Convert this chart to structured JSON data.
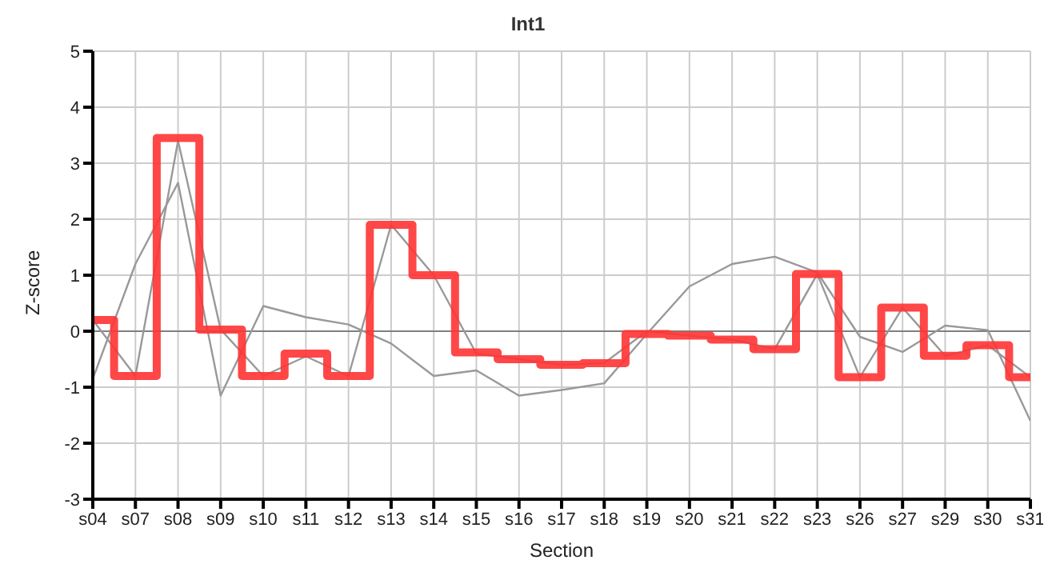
{
  "chart_data": {
    "type": "line",
    "title": "Int1",
    "xlabel": "Section",
    "ylabel": "Z-score",
    "categories": [
      "s04",
      "s07",
      "s08",
      "s09",
      "s10",
      "s11",
      "s12",
      "s13",
      "s14",
      "s15",
      "s16",
      "s17",
      "s18",
      "s19",
      "s20",
      "s21",
      "s22",
      "s23",
      "s26",
      "s27",
      "s29",
      "s30",
      "s31"
    ],
    "series": [
      {
        "color": "#999999",
        "values": [
          -0.85,
          1.2,
          2.65,
          -1.15,
          0.45,
          0.25,
          0.12,
          -0.22,
          -0.8,
          -0.7,
          -1.15,
          -1.05,
          -0.93,
          -0.05,
          0.8,
          1.2,
          1.33,
          1.05,
          -0.1,
          -0.37,
          0.1,
          0.02,
          -1.6
        ]
      },
      {
        "color": "#999999",
        "values": [
          0.2,
          -0.8,
          3.4,
          0.03,
          -0.8,
          -0.45,
          -0.8,
          1.9,
          1.0,
          -0.4,
          -0.5,
          -0.6,
          -0.57,
          0,
          -0.08,
          -0.15,
          -0.32,
          1.02,
          -0.82,
          0.42,
          -0.44,
          -0.25,
          -0.82
        ]
      },
      {
        "type": "step",
        "color": "#ff3333",
        "values": [
          0.2,
          -0.8,
          3.45,
          0.03,
          -0.8,
          -0.4,
          -0.8,
          1.9,
          1.0,
          -0.38,
          -0.5,
          -0.6,
          -0.57,
          -0.05,
          -0.08,
          -0.15,
          -0.32,
          1.02,
          -0.82,
          0.42,
          -0.44,
          -0.25,
          -0.82
        ]
      }
    ],
    "ylim": [
      -3,
      5
    ],
    "yticks": [
      -3,
      -2,
      -1,
      0,
      1,
      2,
      3,
      4,
      5
    ],
    "grid": true,
    "legend": false,
    "marker": "none",
    "ref_lines": [
      {
        "axis": "y",
        "value": 0,
        "color": "#808080"
      }
    ]
  }
}
